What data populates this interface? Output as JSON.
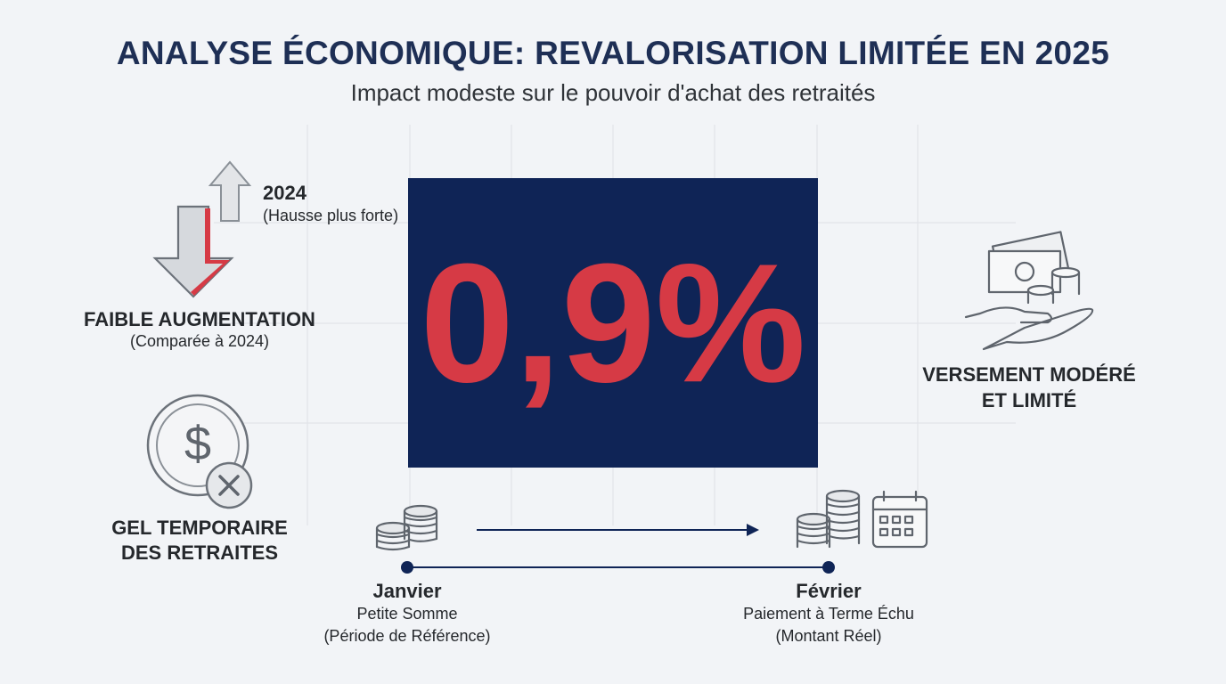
{
  "header": {
    "title": "ANALYSE ÉCONOMIQUE: REVALORISATION LIMITÉE EN 2025",
    "subtitle": "Impact modeste sur le pouvoir d'achat des retraités"
  },
  "highlight": {
    "value": "0,9%"
  },
  "left": {
    "comparison": {
      "year": "2024",
      "year_note": "(Hausse plus forte)",
      "label": "FAIBLE AUGMENTATION",
      "note": "(Comparée à 2024)"
    },
    "freeze": {
      "lines": [
        "GEL TEMPORAIRE",
        "DES RETRAITES"
      ]
    }
  },
  "right": {
    "lines": [
      "VERSEMENT MODÉRÉ",
      "ET LIMITÉ"
    ]
  },
  "timeline": {
    "start": {
      "label": "Janvier",
      "lines": [
        "Petite Somme",
        "(Période de Référence)"
      ]
    },
    "end": {
      "label": "Février",
      "lines": [
        "Paiement à Terme Échu",
        "(Montant Réel)"
      ]
    }
  }
}
